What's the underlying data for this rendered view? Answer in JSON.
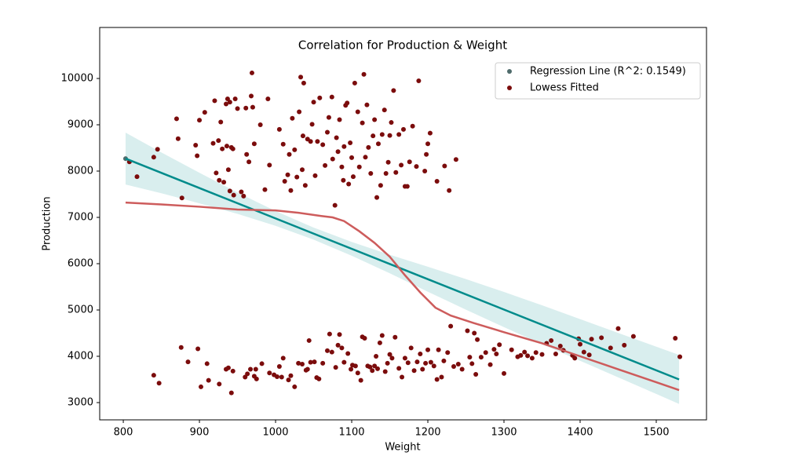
{
  "chart_data": {
    "type": "scatter",
    "title": "Correlation for Production & Weight",
    "x_label": "Weight",
    "y_label": "Production",
    "xlim": [
      769,
      1566
    ],
    "ylim": [
      2627,
      11102
    ],
    "xticks": [
      800,
      900,
      1000,
      1100,
      1200,
      1300,
      1400,
      1500
    ],
    "yticks": [
      3000,
      4000,
      5000,
      6000,
      7000,
      8000,
      9000,
      10000
    ],
    "grid": false,
    "legend_position": "upper-right",
    "series": [
      {
        "name": "Regression Line (R^2: 0.1549)",
        "color": "#4f6b6b",
        "x": [
          803
        ],
        "y": [
          8270
        ]
      },
      {
        "name": "Lowess Fitted",
        "color": "#7b0c0c",
        "x": [
          808,
          818,
          840,
          845,
          870,
          872,
          877,
          895,
          897,
          900,
          907,
          918,
          920,
          922,
          925,
          926,
          928,
          930,
          932,
          935,
          936,
          937,
          938,
          940,
          940,
          942,
          944,
          945,
          947,
          950,
          955,
          958,
          961,
          962,
          965,
          968,
          969,
          970,
          972,
          980,
          986,
          990,
          992,
          1005,
          1010,
          1012,
          1016,
          1018,
          1020,
          1022,
          1025,
          1028,
          1031,
          1033,
          1035,
          1036,
          1037,
          1039,
          1042,
          1046,
          1048,
          1050,
          1052,
          1055,
          1058,
          1062,
          1065,
          1068,
          1070,
          1074,
          1075,
          1078,
          1080,
          1082,
          1084,
          1087,
          1089,
          1090,
          1092,
          1094,
          1096,
          1098,
          1100,
          1102,
          1104,
          1108,
          1110,
          1114,
          1116,
          1118,
          1120,
          1122,
          1125,
          1128,
          1130,
          1133,
          1135,
          1138,
          1140,
          1143,
          1145,
          1148,
          1150,
          1152,
          1155,
          1158,
          1162,
          1165,
          1168,
          1170,
          1173,
          1176,
          1180,
          1185,
          1188,
          1196,
          1198,
          1200,
          1203,
          1212,
          1222,
          1228,
          1237,
          840,
          847,
          876,
          885,
          898,
          902,
          910,
          912,
          926,
          935,
          938,
          942,
          944,
          960,
          963,
          967,
          972,
          974,
          975,
          982,
          992,
          998,
          1002,
          1005,
          1008,
          1010,
          1017,
          1020,
          1025,
          1030,
          1035,
          1040,
          1042,
          1044,
          1046,
          1051,
          1054,
          1057,
          1062,
          1068,
          1071,
          1074,
          1079,
          1082,
          1084,
          1087,
          1090,
          1095,
          1099,
          1101,
          1105,
          1108,
          1112,
          1114,
          1117,
          1121,
          1124,
          1127,
          1130,
          1132,
          1134,
          1137,
          1140,
          1144,
          1147,
          1150,
          1153,
          1157,
          1162,
          1166,
          1170,
          1174,
          1178,
          1182,
          1186,
          1190,
          1193,
          1197,
          1200,
          1204,
          1208,
          1212,
          1214,
          1218,
          1221,
          1226,
          1230,
          1234,
          1240,
          1245,
          1252,
          1255,
          1258,
          1261,
          1263,
          1265,
          1270,
          1276,
          1282,
          1287,
          1290,
          1294,
          1300,
          1310,
          1318,
          1322,
          1327,
          1331,
          1337,
          1342,
          1350,
          1356,
          1362,
          1368,
          1374,
          1378,
          1390,
          1393,
          1398,
          1400,
          1405,
          1412,
          1415,
          1428,
          1440,
          1450,
          1458,
          1470,
          1525,
          1531
        ],
        "y": [
          8200,
          7880,
          8300,
          8470,
          9130,
          8700,
          7420,
          8560,
          8330,
          9100,
          9270,
          8600,
          9520,
          7960,
          8660,
          7800,
          9060,
          8480,
          7760,
          9450,
          8540,
          9560,
          8030,
          7570,
          9490,
          8510,
          8480,
          7480,
          9560,
          9350,
          7550,
          7460,
          9360,
          8360,
          8200,
          9620,
          10120,
          9380,
          8590,
          9000,
          7600,
          9560,
          8130,
          8900,
          8580,
          7780,
          7920,
          8360,
          7580,
          9140,
          8460,
          7870,
          9280,
          10030,
          8030,
          8760,
          9900,
          7690,
          8690,
          8640,
          9010,
          9490,
          7900,
          8640,
          9580,
          8570,
          8120,
          8840,
          9160,
          9600,
          8260,
          7260,
          8720,
          8420,
          9110,
          8090,
          7800,
          8530,
          9420,
          9470,
          7720,
          8610,
          8290,
          7880,
          9900,
          9280,
          8090,
          9040,
          10090,
          8300,
          9430,
          8510,
          7950,
          8760,
          9110,
          7430,
          8590,
          7690,
          8790,
          9320,
          7950,
          8190,
          8770,
          9050,
          9740,
          7970,
          8790,
          8130,
          8900,
          7670,
          7670,
          8200,
          8970,
          8100,
          9950,
          8000,
          8360,
          8590,
          8820,
          7780,
          8110,
          7580,
          8250,
          3590,
          3420,
          4190,
          3880,
          4160,
          3340,
          3840,
          3480,
          3400,
          3720,
          3750,
          3210,
          3680,
          3550,
          3620,
          3720,
          3570,
          3720,
          3510,
          3840,
          3640,
          3600,
          3560,
          3780,
          3550,
          3960,
          3490,
          3580,
          3340,
          3850,
          3830,
          3700,
          3720,
          4340,
          3870,
          3880,
          3540,
          3510,
          3850,
          4120,
          4480,
          4090,
          3760,
          4240,
          4470,
          4180,
          3870,
          4060,
          3720,
          3810,
          3790,
          3640,
          3480,
          4420,
          4390,
          3790,
          3770,
          3690,
          3790,
          4000,
          3730,
          4290,
          4450,
          3670,
          3850,
          4040,
          3960,
          4410,
          3740,
          3550,
          3960,
          3860,
          4180,
          3690,
          3880,
          4050,
          3720,
          3850,
          4140,
          3870,
          3790,
          3500,
          4140,
          3550,
          3900,
          4080,
          4650,
          3780,
          3830,
          3720,
          4550,
          3980,
          3840,
          4500,
          3610,
          4360,
          3980,
          4080,
          3820,
          4150,
          4050,
          4250,
          3630,
          4140,
          3990,
          4020,
          4090,
          4010,
          3960,
          4080,
          4040,
          4280,
          4340,
          4050,
          4220,
          4130,
          4020,
          3960,
          4380,
          4260,
          4090,
          4030,
          4370,
          4400,
          4180,
          4600,
          4240,
          4430,
          4390,
          3990
        ]
      }
    ],
    "confidence_band": {
      "color": "#008b8b",
      "x": [
        803,
        850,
        900,
        950,
        1000,
        1050,
        1100,
        1150,
        1200,
        1250,
        1300,
        1350,
        1400,
        1450,
        1500,
        1530
      ],
      "upper": [
        8830,
        8402,
        7964,
        7536,
        7137,
        6779,
        6471,
        6193,
        5935,
        5667,
        5389,
        5101,
        4803,
        4505,
        4207,
        4030
      ],
      "lower": [
        7710,
        7522,
        7304,
        7076,
        6817,
        6519,
        6171,
        5793,
        5395,
        5007,
        4629,
        4261,
        3903,
        3545,
        3187,
        2970
      ]
    },
    "regression_line": {
      "color": "#008b8b",
      "x": [
        803,
        1530
      ],
      "y": [
        8270,
        3500
      ]
    },
    "lowess_line": {
      "color": "#cd5c5c",
      "x": [
        803,
        850,
        900,
        950,
        1000,
        1030,
        1060,
        1075,
        1090,
        1110,
        1130,
        1150,
        1170,
        1190,
        1210,
        1230,
        1260,
        1300,
        1350,
        1400,
        1450,
        1500,
        1530
      ],
      "y": [
        7320,
        7280,
        7230,
        7170,
        7150,
        7100,
        7030,
        7000,
        6920,
        6700,
        6450,
        6150,
        5750,
        5380,
        5050,
        4880,
        4720,
        4520,
        4280,
        4000,
        3720,
        3440,
        3270
      ]
    }
  }
}
